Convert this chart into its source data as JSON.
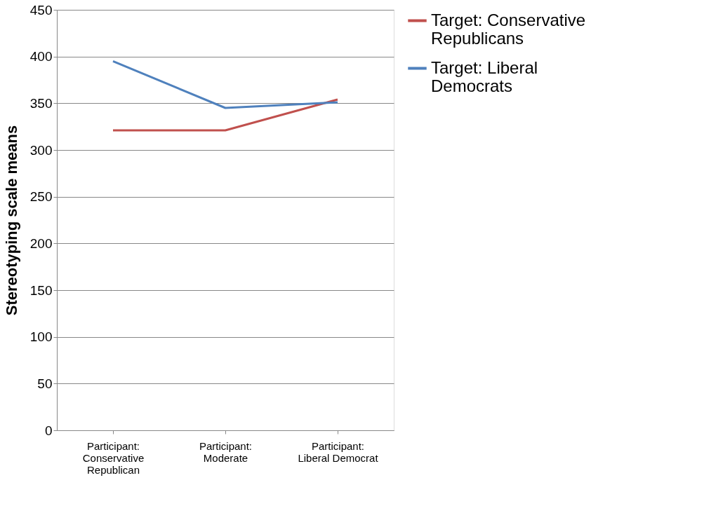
{
  "chart_data": {
    "type": "line",
    "ylabel": "Stereotyping scale means",
    "categories": [
      "Participant: Conservative Republican",
      "Participant: Moderate",
      "Participant: Liberal Democrat"
    ],
    "series": [
      {
        "name": "Target: Conservative Republicans",
        "color": "#c0504d",
        "values": [
          321,
          321,
          354
        ]
      },
      {
        "name": "Target: Liberal Democrats",
        "color": "#4f81bd",
        "values": [
          395,
          345,
          351
        ]
      }
    ],
    "ylim": [
      0,
      450
    ],
    "yticks": [
      0,
      50,
      100,
      150,
      200,
      250,
      300,
      350,
      400,
      450
    ],
    "grid": "y",
    "legend": "right",
    "marker": "none",
    "line_style": "solid"
  }
}
